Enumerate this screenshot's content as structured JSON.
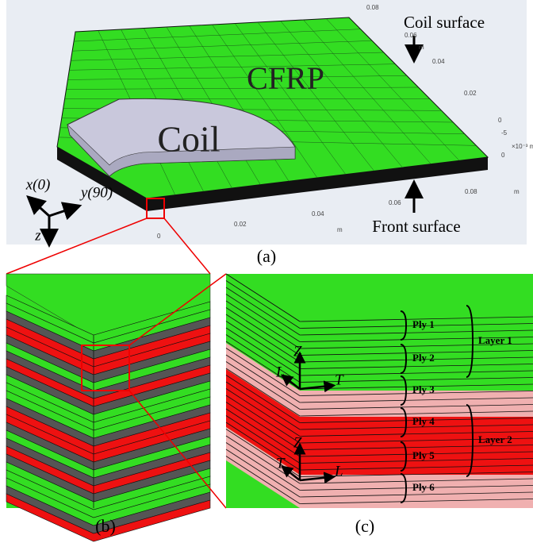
{
  "panel_a": {
    "label": "(a)",
    "cfrp": "CFRP",
    "coil": "Coil",
    "coil_surface": "Coil surface",
    "front_surface": "Front surface",
    "axis_x": "x(0)",
    "axis_y": "y(90)",
    "axis_z": "z",
    "right_ticks": [
      "0.08",
      "0.06",
      "m",
      "0.04",
      "0.02",
      "0",
      "-5",
      "×10⁻³ m",
      "0"
    ],
    "bottom_ticks": [
      "0",
      "0.02",
      "0.04",
      "m",
      "0.06",
      "0.08",
      "m"
    ]
  },
  "panel_b": {
    "label": "(b)"
  },
  "panel_c": {
    "label": "(c)",
    "plies": [
      "Ply 1",
      "Ply 2",
      "Ply 3",
      "Ply 4",
      "Ply 5",
      "Ply 6"
    ],
    "layers": [
      "Layer 1",
      "Layer 2"
    ],
    "top_axes": [
      "Z",
      "L",
      "T"
    ],
    "bottom_axes": [
      "Z",
      "T",
      "L"
    ]
  }
}
